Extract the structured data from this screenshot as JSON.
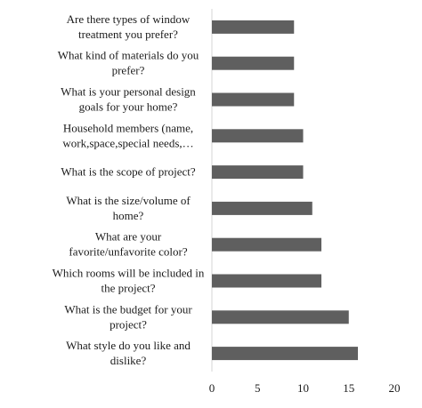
{
  "chart_data": {
    "type": "bar",
    "orientation": "horizontal",
    "categories": [
      "Are there types of window treatment you prefer?",
      "What kind of materials do you prefer?",
      "What is your  personal design goals for your home?",
      "Household members (name, work,space,special needs,…",
      "What is the scope of  project?",
      "What is the size/volume of home?",
      "What are your favorite/unfavorite color?",
      "Which rooms will be included in the project?",
      "What is the budget for your project?",
      "What style do you like and dislike?"
    ],
    "label_lines": [
      [
        "Are there types of window",
        "treatment you prefer?"
      ],
      [
        "What kind of materials do you",
        "prefer?"
      ],
      [
        "What is your  personal design",
        "goals for your home?"
      ],
      [
        "Household members (name,",
        "work,space,special needs,…"
      ],
      [
        "What is the scope of  project?"
      ],
      [
        "What is the size/volume of",
        "home?"
      ],
      [
        "What are your",
        "favorite/unfavorite color?"
      ],
      [
        "Which rooms will be included in",
        "the project?"
      ],
      [
        "What is the budget for your",
        "project?"
      ],
      [
        "What style do you like and",
        "dislike?"
      ]
    ],
    "values": [
      9,
      9,
      9,
      10,
      10,
      11,
      12,
      12,
      15,
      16
    ],
    "xlim": [
      0,
      20
    ],
    "xticks": [
      "0",
      "5",
      "10",
      "15",
      "20"
    ],
    "grid": false,
    "bar_color": "#5f5f5f",
    "title": "",
    "xlabel": "",
    "ylabel": ""
  }
}
